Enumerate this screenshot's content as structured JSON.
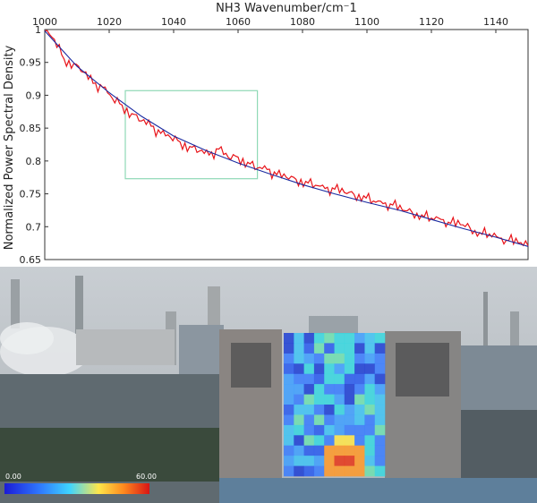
{
  "chart_data": {
    "type": "line",
    "title": "",
    "xlabel": "NH3 Wavenumber/cm⁻1",
    "ylabel": "Normalized Power Spectral Density",
    "xlim": [
      1000,
      1150
    ],
    "ylim": [
      0.65,
      1.0
    ],
    "x_ticks": [
      "1000",
      "1020",
      "1040",
      "1060",
      "1080",
      "1100",
      "1120",
      "1140"
    ],
    "y_ticks": [
      "0.65",
      "0.7",
      "0.75",
      "0.8",
      "0.85",
      "0.9",
      "0.95",
      "1"
    ],
    "x_axis_position": "top",
    "grid": false,
    "legend": "none",
    "series": [
      {
        "color": "#e8141a",
        "style": "noisy measured spectrum",
        "x": [
          1000,
          1003,
          1006,
          1009,
          1012,
          1015,
          1018,
          1021,
          1024,
          1027,
          1030,
          1033,
          1036,
          1039,
          1042,
          1045,
          1048,
          1051,
          1054,
          1057,
          1060,
          1063,
          1066,
          1069,
          1072,
          1075,
          1078,
          1081,
          1084,
          1087,
          1090,
          1093,
          1096,
          1099,
          1102,
          1105,
          1108,
          1111,
          1114,
          1117,
          1120,
          1123,
          1126,
          1129,
          1132,
          1135,
          1138,
          1141,
          1144,
          1147,
          1150
        ],
        "values": [
          0.998,
          0.985,
          0.955,
          0.948,
          0.935,
          0.918,
          0.912,
          0.895,
          0.885,
          0.872,
          0.861,
          0.853,
          0.842,
          0.836,
          0.829,
          0.822,
          0.815,
          0.809,
          0.818,
          0.805,
          0.806,
          0.798,
          0.789,
          0.787,
          0.779,
          0.775,
          0.772,
          0.769,
          0.763,
          0.758,
          0.757,
          0.752,
          0.749,
          0.747,
          0.739,
          0.735,
          0.733,
          0.725,
          0.722,
          0.718,
          0.713,
          0.711,
          0.705,
          0.703,
          0.698,
          0.691,
          0.689,
          0.683,
          0.679,
          0.675,
          0.671
        ]
      },
      {
        "color": "#1a2aa0",
        "style": "smooth fit",
        "x": [
          1000,
          1010,
          1020,
          1030,
          1040,
          1050,
          1060,
          1070,
          1080,
          1090,
          1100,
          1110,
          1120,
          1130,
          1140,
          1150
        ],
        "values": [
          0.998,
          0.944,
          0.904,
          0.868,
          0.838,
          0.816,
          0.797,
          0.78,
          0.764,
          0.75,
          0.737,
          0.725,
          0.711,
          0.697,
          0.684,
          0.67
        ]
      }
    ],
    "annotations": [
      {
        "type": "highlight-box",
        "x_range": [
          1025,
          1066
        ],
        "y_range": [
          0.773,
          0.907
        ],
        "color": "#8fd9b6"
      }
    ]
  },
  "image": {
    "description_name": "industrial-site-photo",
    "colorbar": {
      "min_label": "0.00",
      "max_label": "60.00",
      "colors": [
        "#1b1bd6",
        "#2f7bff",
        "#3fd4ff",
        "#ffe64a",
        "#ff8a1e",
        "#d81515"
      ]
    }
  }
}
